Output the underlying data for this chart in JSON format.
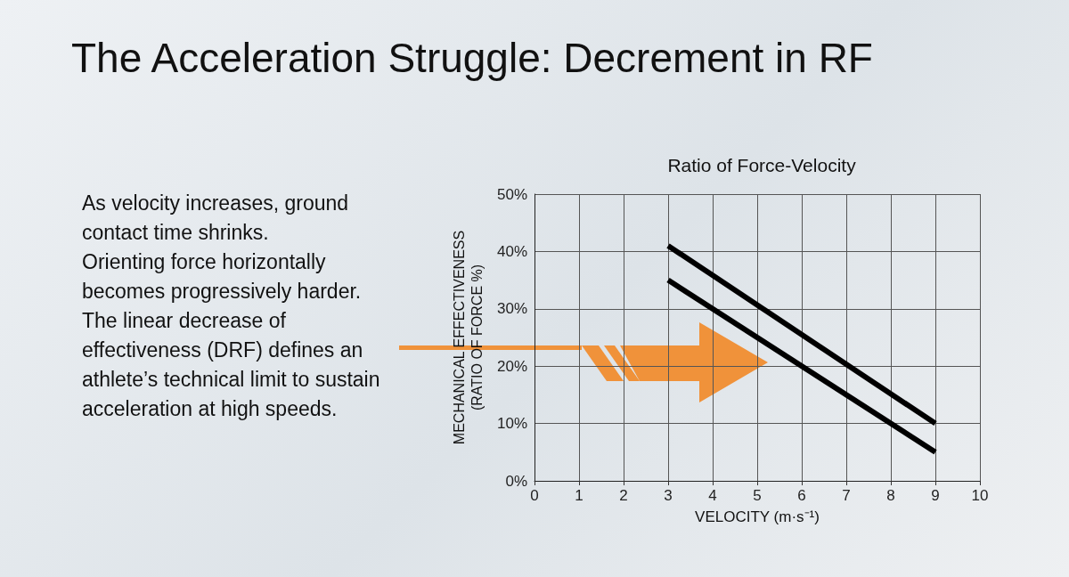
{
  "chart_data": {
    "type": "line",
    "title": "The Acceleration Struggle: Decrement in RF",
    "subtitle": "Ratio of Force-Velocity",
    "xlabel": "VELOCITY (m·s⁻¹)",
    "ylabel": "MECHANICAL EFFECTIVENESS\n(RATIO OF FORCE %)",
    "annotations": [
      "As velocity increases, ground contact time shrinks.",
      "Orienting force horizontally becomes progressively harder.",
      "The linear decrease of effectiveness (DRF) defines an athlete’s technical limit to sustain acceleration at high speeds."
    ],
    "x": [
      3,
      9
    ],
    "series": [
      {
        "color": "#000000",
        "values": [
          41,
          10
        ]
      },
      {
        "color": "#000000",
        "values": [
          35,
          5
        ]
      }
    ],
    "xlim": [
      0,
      10
    ],
    "xticks": [
      0,
      1,
      2,
      3,
      4,
      5,
      6,
      7,
      8,
      9,
      10
    ],
    "ylim": [
      0,
      50
    ],
    "yticks": [
      {
        "value": 0,
        "label": "0%"
      },
      {
        "value": 10,
        "label": "10%"
      },
      {
        "value": 20,
        "label": "20%"
      },
      {
        "value": 30,
        "label": "30%"
      },
      {
        "value": 40,
        "label": "40%"
      },
      {
        "value": 50,
        "label": "50%"
      }
    ],
    "grid": true,
    "marker": "none",
    "line_style": "solid"
  }
}
